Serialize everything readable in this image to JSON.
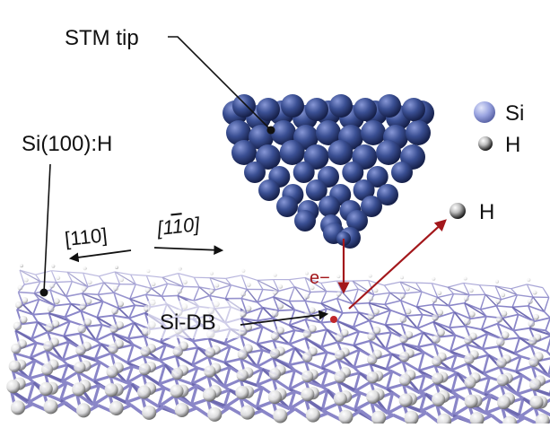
{
  "labels": {
    "stm_tip": "STM tip",
    "surface": "Si(100):H",
    "direction_a": "[110]",
    "direction_b_pre": "[1",
    "direction_b_bar": "1",
    "direction_b_post": "0]",
    "electron": "e−",
    "dangling_bond": "Si-DB",
    "desorbed_h": "H"
  },
  "legend": [
    {
      "symbol": "si-atom",
      "label": "Si"
    },
    {
      "symbol": "h-atom",
      "label": "H"
    }
  ],
  "colors": {
    "si": "#5c6cb8",
    "si_tip": "#3a4f93",
    "bond": "#8a86c8",
    "h": "#f2f2f2",
    "arrow_red": "#a3171b",
    "text": "#111111"
  }
}
